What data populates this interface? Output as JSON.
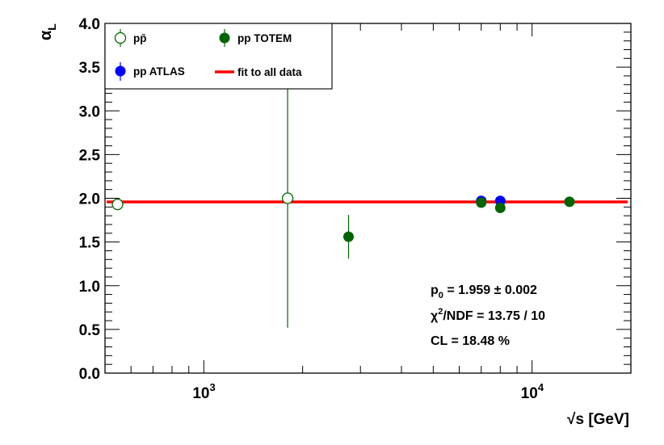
{
  "chart_data": {
    "type": "scatter",
    "xlabel": "√s [GeV]",
    "ylabel": "α_L",
    "xlim": [
      500,
      20000
    ],
    "ylim": [
      0,
      4
    ],
    "xscale": "log",
    "y_ticks": [
      "0.0",
      "0.5",
      "1.0",
      "1.5",
      "2.0",
      "2.5",
      "3.0",
      "3.5",
      "4.0"
    ],
    "x_ticks": [
      {
        "value": 1000,
        "base": "10",
        "exp": "3"
      },
      {
        "value": 10000,
        "base": "10",
        "exp": "4"
      }
    ],
    "legend_position": "top-left",
    "series": [
      {
        "name": "pp̄",
        "color": "#006400",
        "marker": "open-circle",
        "points": [
          {
            "x": 546,
            "y": 1.93,
            "yerr": 0.04
          },
          {
            "x": 1800,
            "y": 2.0,
            "yerr": 1.48
          }
        ]
      },
      {
        "name": "pp TOTEM",
        "color": "#006400",
        "marker": "filled-circle",
        "points": [
          {
            "x": 2760,
            "y": 1.56,
            "yerr": 0.25
          },
          {
            "x": 7000,
            "y": 1.95,
            "yerr": 0.02
          },
          {
            "x": 8000,
            "y": 1.89,
            "yerr": 0.02
          },
          {
            "x": 13000,
            "y": 1.96,
            "yerr": 0.02
          }
        ]
      },
      {
        "name": "pp ATLAS",
        "color": "#0000ff",
        "marker": "filled-circle",
        "points": [
          {
            "x": 7000,
            "y": 1.97,
            "yerr": 0.01
          },
          {
            "x": 8000,
            "y": 1.97,
            "yerr": 0.01
          }
        ]
      },
      {
        "name": "fit to all data",
        "color": "#ff0000",
        "marker": "line",
        "value": 1.959
      }
    ],
    "annotations": {
      "p0": "p",
      "p0_sub": "0",
      "p0_value": " = 1.959 ± 0.002",
      "chi2": "χ",
      "chi2_sup": "2",
      "chi2_value": "/NDF = 13.75 / 10",
      "cl": "CL = 18.48 %"
    }
  }
}
